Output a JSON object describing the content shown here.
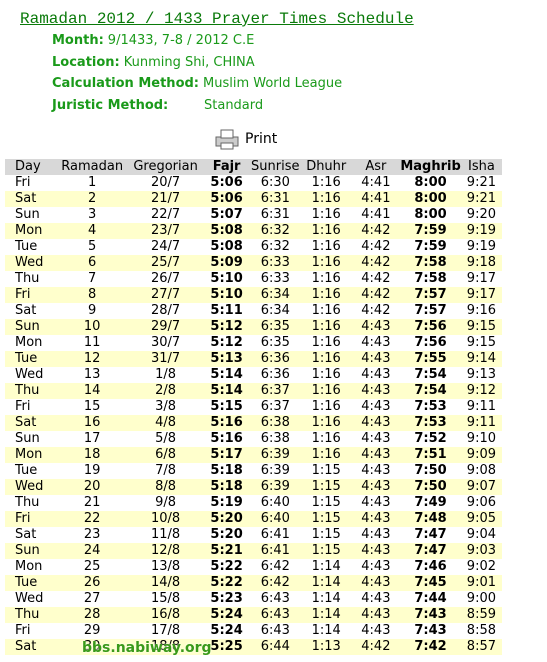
{
  "header": {
    "title": "Ramadan 2012 / 1433 Prayer Times Schedule",
    "info": [
      {
        "label": "Month:",
        "value": "9/1433, 7-8 / 2012 C.E"
      },
      {
        "label": "Location:",
        "value": "Kunming Shi, CHINA"
      },
      {
        "label": "Calculation Method:",
        "value": "Muslim World League"
      },
      {
        "label": "Juristic Method:",
        "value": "Standard"
      }
    ]
  },
  "print": "Print",
  "table": {
    "headers": [
      "Day",
      "Ramadan",
      "Gregorian",
      "Fajr",
      "Sunrise",
      "Dhuhr",
      "Asr",
      "Maghrib",
      "Isha"
    ],
    "rows": [
      [
        "Fri",
        "1",
        "20/7",
        "5:06",
        "6:30",
        "1:16",
        "4:41",
        "8:00",
        "9:21"
      ],
      [
        "Sat",
        "2",
        "21/7",
        "5:06",
        "6:31",
        "1:16",
        "4:41",
        "8:00",
        "9:21"
      ],
      [
        "Sun",
        "3",
        "22/7",
        "5:07",
        "6:31",
        "1:16",
        "4:41",
        "8:00",
        "9:20"
      ],
      [
        "Mon",
        "4",
        "23/7",
        "5:08",
        "6:32",
        "1:16",
        "4:42",
        "7:59",
        "9:19"
      ],
      [
        "Tue",
        "5",
        "24/7",
        "5:08",
        "6:32",
        "1:16",
        "4:42",
        "7:59",
        "9:19"
      ],
      [
        "Wed",
        "6",
        "25/7",
        "5:09",
        "6:33",
        "1:16",
        "4:42",
        "7:58",
        "9:18"
      ],
      [
        "Thu",
        "7",
        "26/7",
        "5:10",
        "6:33",
        "1:16",
        "4:42",
        "7:58",
        "9:17"
      ],
      [
        "Fri",
        "8",
        "27/7",
        "5:10",
        "6:34",
        "1:16",
        "4:42",
        "7:57",
        "9:17"
      ],
      [
        "Sat",
        "9",
        "28/7",
        "5:11",
        "6:34",
        "1:16",
        "4:42",
        "7:57",
        "9:16"
      ],
      [
        "Sun",
        "10",
        "29/7",
        "5:12",
        "6:35",
        "1:16",
        "4:43",
        "7:56",
        "9:15"
      ],
      [
        "Mon",
        "11",
        "30/7",
        "5:12",
        "6:35",
        "1:16",
        "4:43",
        "7:56",
        "9:15"
      ],
      [
        "Tue",
        "12",
        "31/7",
        "5:13",
        "6:36",
        "1:16",
        "4:43",
        "7:55",
        "9:14"
      ],
      [
        "Wed",
        "13",
        "1/8",
        "5:14",
        "6:36",
        "1:16",
        "4:43",
        "7:54",
        "9:13"
      ],
      [
        "Thu",
        "14",
        "2/8",
        "5:14",
        "6:37",
        "1:16",
        "4:43",
        "7:54",
        "9:12"
      ],
      [
        "Fri",
        "15",
        "3/8",
        "5:15",
        "6:37",
        "1:16",
        "4:43",
        "7:53",
        "9:11"
      ],
      [
        "Sat",
        "16",
        "4/8",
        "5:16",
        "6:38",
        "1:16",
        "4:43",
        "7:53",
        "9:11"
      ],
      [
        "Sun",
        "17",
        "5/8",
        "5:16",
        "6:38",
        "1:16",
        "4:43",
        "7:52",
        "9:10"
      ],
      [
        "Mon",
        "18",
        "6/8",
        "5:17",
        "6:39",
        "1:16",
        "4:43",
        "7:51",
        "9:09"
      ],
      [
        "Tue",
        "19",
        "7/8",
        "5:18",
        "6:39",
        "1:15",
        "4:43",
        "7:50",
        "9:08"
      ],
      [
        "Wed",
        "20",
        "8/8",
        "5:18",
        "6:39",
        "1:15",
        "4:43",
        "7:50",
        "9:07"
      ],
      [
        "Thu",
        "21",
        "9/8",
        "5:19",
        "6:40",
        "1:15",
        "4:43",
        "7:49",
        "9:06"
      ],
      [
        "Fri",
        "22",
        "10/8",
        "5:20",
        "6:40",
        "1:15",
        "4:43",
        "7:48",
        "9:05"
      ],
      [
        "Sat",
        "23",
        "11/8",
        "5:20",
        "6:41",
        "1:15",
        "4:43",
        "7:47",
        "9:04"
      ],
      [
        "Sun",
        "24",
        "12/8",
        "5:21",
        "6:41",
        "1:15",
        "4:43",
        "7:47",
        "9:03"
      ],
      [
        "Mon",
        "25",
        "13/8",
        "5:22",
        "6:42",
        "1:14",
        "4:43",
        "7:46",
        "9:02"
      ],
      [
        "Tue",
        "26",
        "14/8",
        "5:22",
        "6:42",
        "1:14",
        "4:43",
        "7:45",
        "9:01"
      ],
      [
        "Wed",
        "27",
        "15/8",
        "5:23",
        "6:43",
        "1:14",
        "4:43",
        "7:44",
        "9:00"
      ],
      [
        "Thu",
        "28",
        "16/8",
        "5:24",
        "6:43",
        "1:14",
        "4:43",
        "7:43",
        "8:59"
      ],
      [
        "Fri",
        "29",
        "17/8",
        "5:24",
        "6:43",
        "1:14",
        "4:43",
        "7:43",
        "8:58"
      ],
      [
        "Sat",
        "30",
        "18/8",
        "5:25",
        "6:44",
        "1:13",
        "4:42",
        "7:42",
        "8:57"
      ]
    ]
  },
  "watermark": "bbs.nabiway.org"
}
